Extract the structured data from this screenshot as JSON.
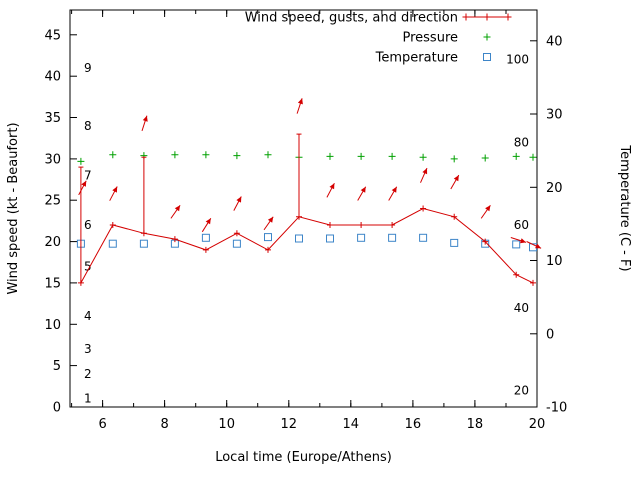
{
  "chart_data": {
    "type": "line",
    "title": "",
    "xlabel": "Local time (Europe/Athens)",
    "ylabel_left": "Wind speed (kt - Beaufort)",
    "ylabel_right": "Temperature (C - F)",
    "xlim": [
      4.95,
      20
    ],
    "left_lim": [
      0,
      48
    ],
    "right_lim": [
      -10,
      44.2
    ],
    "x_ticks": [
      6,
      8,
      10,
      12,
      14,
      16,
      18,
      20
    ],
    "x_minor_from": 5,
    "x_minor_to": 20,
    "left_ticks": [
      0,
      5,
      10,
      15,
      20,
      25,
      30,
      35,
      40,
      45
    ],
    "right_ticks": [
      -10,
      0,
      10,
      20,
      30,
      40
    ],
    "beaufort_scale": {
      "labels": [
        1,
        2,
        3,
        4,
        5,
        6,
        7,
        8,
        9
      ],
      "knots": [
        1,
        4,
        7,
        11,
        17,
        22,
        28,
        34,
        41
      ]
    },
    "inner_right_scale": {
      "labels": [
        20,
        40,
        60,
        80,
        100
      ],
      "left_units": [
        2,
        12,
        22,
        32,
        42
      ]
    },
    "x": [
      5.3,
      6.33,
      7.33,
      8.33,
      9.33,
      10.33,
      11.33,
      12.33,
      13.33,
      14.33,
      15.33,
      16.33,
      17.33,
      18.33,
      19.33,
      19.87
    ],
    "series": [
      {
        "name": "Wind speed, gusts, and direction",
        "color": "#d40000",
        "axis": "left",
        "marker": "plus",
        "style": "linespoints",
        "values": [
          15,
          22,
          21,
          20.3,
          19,
          21,
          19,
          23,
          22,
          22,
          22,
          24,
          23,
          20,
          16,
          15
        ],
        "gusts": [
          29,
          null,
          30.2,
          null,
          null,
          null,
          null,
          33,
          null,
          null,
          null,
          null,
          null,
          null,
          null,
          null
        ]
      },
      {
        "name": "Pressure",
        "color": "#00a000",
        "axis": "left",
        "marker": "plus",
        "style": "points",
        "values": [
          29.7,
          30.5,
          30.4,
          30.5,
          30.5,
          30.4,
          30.5,
          30.2,
          30.3,
          30.3,
          30.3,
          30.2,
          30.0,
          30.1,
          30.3,
          30.2
        ]
      },
      {
        "name": "Temperature",
        "color": "#3d85c8",
        "axis": "right",
        "marker": "square",
        "style": "points",
        "values": [
          12.3,
          12.3,
          12.3,
          12.3,
          13.1,
          12.3,
          13.2,
          13.0,
          13.0,
          13.1,
          13.1,
          13.1,
          12.4,
          12.3,
          12.2,
          11.8
        ]
      }
    ],
    "wind_arrows": [
      {
        "x": 5.35,
        "y": 26.5,
        "angle": 62
      },
      {
        "x": 6.35,
        "y": 25.8,
        "angle": 62
      },
      {
        "x": 7.35,
        "y": 34.3,
        "angle": 72
      },
      {
        "x": 8.35,
        "y": 23.6,
        "angle": 55
      },
      {
        "x": 9.35,
        "y": 22.0,
        "angle": 58
      },
      {
        "x": 10.35,
        "y": 24.6,
        "angle": 62
      },
      {
        "x": 11.35,
        "y": 22.2,
        "angle": 55
      },
      {
        "x": 12.35,
        "y": 36.4,
        "angle": 72
      },
      {
        "x": 13.35,
        "y": 26.2,
        "angle": 62
      },
      {
        "x": 14.35,
        "y": 25.8,
        "angle": 60
      },
      {
        "x": 15.35,
        "y": 25.8,
        "angle": 60
      },
      {
        "x": 16.35,
        "y": 28.0,
        "angle": 66
      },
      {
        "x": 17.35,
        "y": 27.2,
        "angle": 60
      },
      {
        "x": 18.35,
        "y": 23.6,
        "angle": 55
      },
      {
        "x": 19.4,
        "y": 20.2,
        "angle": -18
      },
      {
        "x": 19.9,
        "y": 19.6,
        "angle": -25
      }
    ],
    "legend": {
      "position": "top-center"
    },
    "colors": {
      "axis": "#000000",
      "background": "#ffffff"
    }
  }
}
